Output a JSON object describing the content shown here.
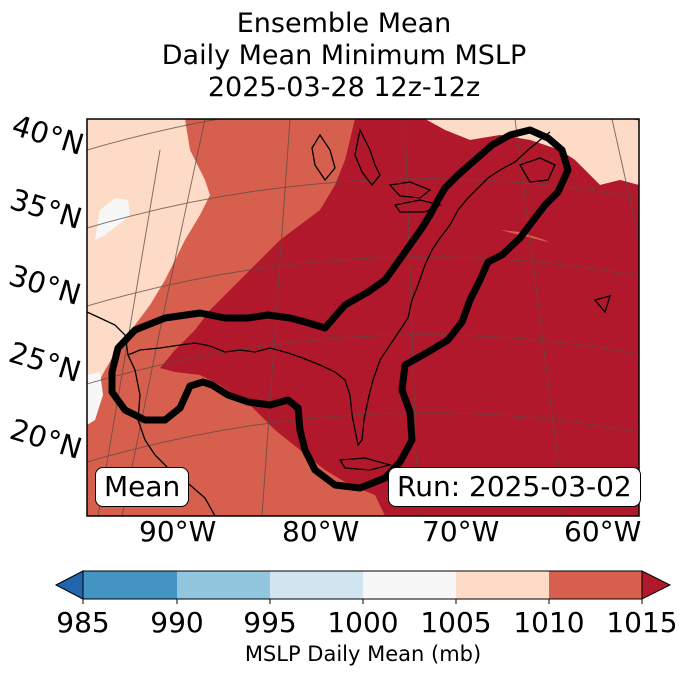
{
  "title": {
    "line1": "Ensemble Mean",
    "line2": "Daily Mean Minimum MSLP",
    "line3": "2025-03-28 12z-12z"
  },
  "map": {
    "lat_labels": [
      "40°N",
      "35°N",
      "30°N",
      "25°N",
      "20°N"
    ],
    "lon_labels": [
      "90°W",
      "80°W",
      "70°W",
      "60°W"
    ],
    "mean_label": "Mean",
    "run_label": "Run: 2025-03-02",
    "contour_color": "#000000"
  },
  "colorbar": {
    "title": "MSLP Daily Mean (mb)",
    "ticks": [
      "985",
      "990",
      "995",
      "1000",
      "1005",
      "1010",
      "1015"
    ],
    "colors": [
      "#2166ac",
      "#4393c3",
      "#92c5de",
      "#d1e5f0",
      "#f7f7f7",
      "#fddbc7",
      "#d6604d",
      "#b2182b"
    ]
  }
}
